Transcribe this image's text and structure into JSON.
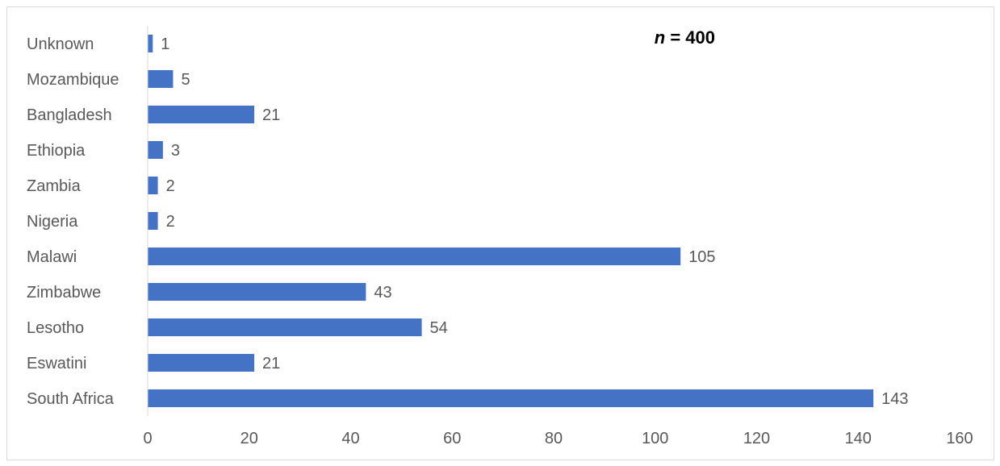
{
  "chart_data": {
    "type": "bar",
    "orientation": "horizontal",
    "categories": [
      "Unknown",
      "Mozambique",
      "Bangladesh",
      "Ethiopia",
      "Zambia",
      "Nigeria",
      "Malawi",
      "Zimbabwe",
      "Lesotho",
      "Eswatini",
      "South Africa"
    ],
    "values": [
      1,
      5,
      21,
      3,
      2,
      2,
      105,
      43,
      54,
      21,
      143
    ],
    "data_labels": [
      "1",
      "5",
      "21",
      "3",
      "2",
      "2",
      "105",
      "43",
      "54",
      "21",
      "143"
    ],
    "annotation": {
      "italic_part": "n",
      "rest": " = 400"
    },
    "xlim": [
      0,
      160
    ],
    "x_ticks": [
      "0",
      "20",
      "40",
      "60",
      "80",
      "100",
      "120",
      "140",
      "160"
    ],
    "grid": false,
    "legend": "none",
    "bar_color": "#4472c4",
    "text_color": "#595959"
  }
}
